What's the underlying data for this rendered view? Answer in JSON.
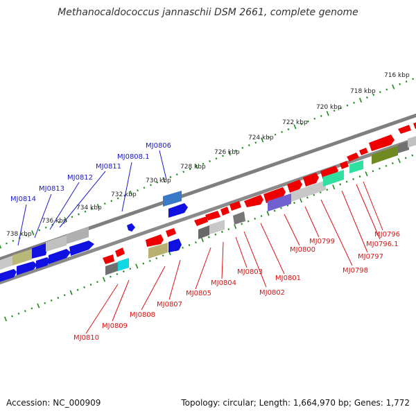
{
  "title": "Methanocaldococcus jannaschii DSM 2661, complete genome",
  "footer": {
    "accession": "Accession: NC_000909",
    "summary": "Topology: circular; Length: 1,664,970 bp; Genes: 1,772"
  },
  "scale_labels": [
    "716 kbp",
    "718 kbp",
    "720 kbp",
    "722 kbp",
    "724 kbp",
    "726 kbp",
    "728 kbp",
    "730 kbp",
    "732 kbp",
    "734 kbp",
    "736 kbp",
    "738 kbp"
  ],
  "colors": {
    "forward_genes": "#0000ee",
    "reverse_genes": "#ee0000",
    "backbone": "#7f7f7f",
    "ticks": "#1a8a1a"
  },
  "upper_gene_labels": [
    "MJ0814",
    "MJ0813",
    "MJ0812",
    "MJ0811",
    "MJ0808.1",
    "MJ0806"
  ],
  "lower_gene_labels": [
    "MJ0796",
    "MJ0796.1",
    "MJ0797",
    "MJ0798",
    "MJ0799",
    "MJ0800",
    "MJ0801",
    "MJ0802",
    "MJ0803",
    "MJ0804",
    "MJ0805",
    "MJ0807",
    "MJ0808",
    "MJ0809",
    "MJ0810"
  ]
}
